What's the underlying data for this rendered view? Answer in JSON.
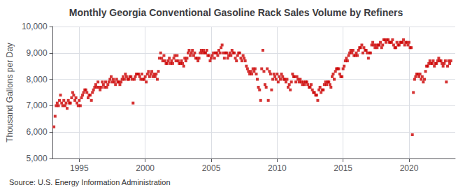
{
  "chart_data": {
    "type": "scatter",
    "title": "Monthly Georgia Conventional Gasoline Rack Sales Volume by Refiners",
    "ylabel": "Thousand Gallons per Day",
    "annotation": "Source: U.S. Energy Information Administration",
    "color": "#cc0000",
    "marker": "square",
    "grid": true,
    "xlim": [
      1993.0,
      2023.5
    ],
    "xticks": [
      1995,
      2000,
      2005,
      2010,
      2015,
      2020
    ],
    "ylim": [
      5000,
      10000
    ],
    "yticks": [
      {
        "value": 5000,
        "label": "5,000"
      },
      {
        "value": 6000,
        "label": "6,000"
      },
      {
        "value": 7000,
        "label": "7,000"
      },
      {
        "value": 8000,
        "label": "8,000"
      },
      {
        "value": 9000,
        "label": "9,000"
      },
      {
        "value": 10000,
        "label": "10,000"
      }
    ],
    "x": [
      1993.08,
      1993.17,
      1993.25,
      1993.33,
      1993.42,
      1993.5,
      1993.58,
      1993.67,
      1993.75,
      1993.83,
      1993.92,
      1994.0,
      1994.08,
      1994.17,
      1994.25,
      1994.33,
      1994.42,
      1994.5,
      1994.58,
      1994.67,
      1994.75,
      1994.83,
      1994.92,
      1995.0,
      1995.08,
      1995.17,
      1995.25,
      1995.33,
      1995.42,
      1995.5,
      1995.58,
      1995.67,
      1995.75,
      1995.83,
      1995.92,
      1996.0,
      1996.08,
      1996.17,
      1996.25,
      1996.33,
      1996.42,
      1996.5,
      1996.58,
      1996.67,
      1996.75,
      1996.83,
      1996.92,
      1997.0,
      1997.08,
      1997.17,
      1997.25,
      1997.33,
      1997.42,
      1997.5,
      1997.58,
      1997.67,
      1997.75,
      1997.83,
      1997.92,
      1998.0,
      1998.08,
      1998.17,
      1998.25,
      1998.33,
      1998.42,
      1998.5,
      1998.58,
      1998.67,
      1998.75,
      1998.83,
      1998.92,
      1999.0,
      1999.08,
      1999.17,
      1999.25,
      1999.33,
      1999.42,
      1999.5,
      1999.58,
      1999.67,
      1999.75,
      1999.83,
      1999.92,
      2000.0,
      2000.08,
      2000.17,
      2000.25,
      2000.33,
      2000.42,
      2000.5,
      2000.58,
      2000.67,
      2000.75,
      2000.83,
      2000.92,
      2001.0,
      2001.08,
      2001.17,
      2001.25,
      2001.33,
      2001.42,
      2001.5,
      2001.58,
      2001.67,
      2001.75,
      2001.83,
      2001.92,
      2002.0,
      2002.08,
      2002.17,
      2002.25,
      2002.33,
      2002.42,
      2002.5,
      2002.58,
      2002.67,
      2002.75,
      2002.83,
      2002.92,
      2003.0,
      2003.08,
      2003.17,
      2003.25,
      2003.33,
      2003.42,
      2003.5,
      2003.58,
      2003.67,
      2003.75,
      2003.83,
      2003.92,
      2004.0,
      2004.08,
      2004.17,
      2004.25,
      2004.33,
      2004.42,
      2004.5,
      2004.58,
      2004.67,
      2004.75,
      2004.83,
      2004.92,
      2005.0,
      2005.08,
      2005.17,
      2005.25,
      2005.33,
      2005.42,
      2005.5,
      2005.58,
      2005.67,
      2005.75,
      2005.83,
      2005.92,
      2006.0,
      2006.08,
      2006.17,
      2006.25,
      2006.33,
      2006.42,
      2006.5,
      2006.58,
      2006.67,
      2006.75,
      2006.83,
      2006.92,
      2007.0,
      2007.08,
      2007.17,
      2007.25,
      2007.33,
      2007.42,
      2007.5,
      2007.58,
      2007.67,
      2007.75,
      2007.83,
      2007.92,
      2008.0,
      2008.08,
      2008.17,
      2008.25,
      2008.33,
      2008.42,
      2008.5,
      2008.58,
      2008.67,
      2008.75,
      2008.83,
      2008.92,
      2009.0,
      2009.08,
      2009.17,
      2009.25,
      2009.33,
      2009.42,
      2009.5,
      2009.58,
      2009.67,
      2009.75,
      2009.83,
      2009.92,
      2010.0,
      2010.08,
      2010.17,
      2010.25,
      2010.33,
      2010.42,
      2010.5,
      2010.58,
      2010.67,
      2010.75,
      2010.83,
      2010.92,
      2011.0,
      2011.08,
      2011.17,
      2011.25,
      2011.33,
      2011.42,
      2011.5,
      2011.58,
      2011.67,
      2011.75,
      2011.83,
      2011.92,
      2012.0,
      2012.08,
      2012.17,
      2012.25,
      2012.33,
      2012.42,
      2012.5,
      2012.58,
      2012.67,
      2012.75,
      2012.83,
      2012.92,
      2013.0,
      2013.08,
      2013.17,
      2013.25,
      2013.33,
      2013.42,
      2013.5,
      2013.58,
      2013.67,
      2013.75,
      2013.83,
      2013.92,
      2014.0,
      2014.08,
      2014.17,
      2014.25,
      2014.33,
      2014.42,
      2014.5,
      2014.58,
      2014.67,
      2014.75,
      2014.83,
      2014.92,
      2015.0,
      2015.08,
      2015.17,
      2015.25,
      2015.33,
      2015.42,
      2015.5,
      2015.58,
      2015.67,
      2015.75,
      2015.83,
      2015.92,
      2016.0,
      2016.08,
      2016.17,
      2016.25,
      2016.33,
      2016.42,
      2016.5,
      2016.58,
      2016.67,
      2016.75,
      2016.83,
      2016.92,
      2017.0,
      2017.08,
      2017.17,
      2017.25,
      2017.33,
      2017.42,
      2017.5,
      2017.58,
      2017.67,
      2017.75,
      2017.83,
      2017.92,
      2018.0,
      2018.08,
      2018.17,
      2018.25,
      2018.33,
      2018.42,
      2018.5,
      2018.58,
      2018.67,
      2018.75,
      2018.83,
      2018.92,
      2019.0,
      2019.08,
      2019.17,
      2019.25,
      2019.33,
      2019.42,
      2019.5,
      2019.58,
      2019.67,
      2019.75,
      2019.83,
      2019.92,
      2020.0,
      2020.08,
      2020.17,
      2020.25,
      2020.33,
      2020.42,
      2020.5,
      2020.58,
      2020.67,
      2020.75,
      2020.83,
      2020.92,
      2021.0,
      2021.08,
      2021.17,
      2021.25,
      2021.33,
      2021.42,
      2021.5,
      2021.58,
      2021.67,
      2021.75,
      2021.83,
      2021.92,
      2022.0,
      2022.08,
      2022.17,
      2022.25,
      2022.33,
      2022.42,
      2022.5,
      2022.58,
      2022.67,
      2022.75,
      2022.83,
      2022.92,
      2023.0,
      2023.08,
      2023.17
    ],
    "values": [
      6200,
      6600,
      7000,
      7100,
      7000,
      7200,
      7400,
      7100,
      7000,
      7200,
      7000,
      7100,
      6900,
      7200,
      7100,
      7100,
      7300,
      7500,
      7400,
      7200,
      7300,
      7100,
      7000,
      7200,
      7000,
      7300,
      7400,
      7500,
      7600,
      7600,
      7500,
      7300,
      7400,
      7400,
      7200,
      7500,
      7600,
      7700,
      7800,
      7700,
      7900,
      7700,
      7600,
      7700,
      7900,
      7800,
      7700,
      7900,
      7700,
      7800,
      7900,
      8000,
      8100,
      7900,
      8000,
      7900,
      7800,
      8000,
      7900,
      7900,
      7800,
      7900,
      8000,
      8100,
      8000,
      8200,
      8100,
      8000,
      8000,
      8100,
      8100,
      8000,
      7100,
      8000,
      8100,
      8200,
      8200,
      8200,
      8100,
      8000,
      8200,
      8000,
      8000,
      8100,
      7900,
      8200,
      8300,
      8100,
      8200,
      8300,
      8100,
      8200,
      8100,
      8200,
      8000,
      8300,
      8800,
      9000,
      8800,
      8700,
      8900,
      8700,
      8600,
      8600,
      8700,
      8800,
      8600,
      8700,
      8600,
      8800,
      8900,
      8700,
      8900,
      8700,
      8600,
      8600,
      8700,
      8600,
      8500,
      8800,
      8700,
      8800,
      9000,
      9100,
      8900,
      9000,
      9100,
      8900,
      9000,
      8800,
      8800,
      8700,
      8800,
      9000,
      9100,
      9000,
      9100,
      9000,
      9000,
      9100,
      8900,
      8900,
      8700,
      8800,
      8900,
      9000,
      8800,
      9000,
      9000,
      8900,
      9100,
      9000,
      9200,
      9300,
      9000,
      8800,
      9000,
      9000,
      8800,
      8900,
      9000,
      8900,
      9100,
      9000,
      9000,
      8800,
      8700,
      8900,
      9000,
      9000,
      8800,
      8700,
      8900,
      8800,
      8700,
      8500,
      8400,
      8300,
      8200,
      8300,
      8200,
      8400,
      8300,
      8400,
      8200,
      8000,
      7700,
      7600,
      7200,
      8400,
      9100,
      8300,
      7800,
      7700,
      8400,
      7200,
      8300,
      8200,
      7600,
      8000,
      8200,
      8100,
      8000,
      8200,
      7900,
      8100,
      8000,
      8200,
      8100,
      8000,
      8000,
      7900,
      8000,
      7700,
      7800,
      7600,
      7900,
      8200,
      8100,
      8100,
      7900,
      8100,
      8000,
      7900,
      8000,
      7900,
      7800,
      7900,
      7800,
      7900,
      7900,
      7800,
      7700,
      7700,
      7800,
      7600,
      7500,
      7500,
      7400,
      7400,
      7200,
      7600,
      7700,
      7500,
      7600,
      7600,
      7800,
      7900,
      7800,
      7900,
      7900,
      7800,
      7700,
      8100,
      8200,
      8000,
      8300,
      8400,
      8400,
      8400,
      8200,
      8100,
      8100,
      8400,
      8500,
      8700,
      8800,
      8700,
      8900,
      9000,
      9100,
      9000,
      9100,
      8900,
      8900,
      9000,
      8900,
      9100,
      9200,
      9200,
      9300,
      9000,
      9200,
      9100,
      9100,
      9000,
      8800,
      9000,
      9000,
      9300,
      9400,
      9300,
      9200,
      9300,
      9200,
      9300,
      9300,
      9400,
      9200,
      9300,
      9500,
      9500,
      9400,
      9500,
      9500,
      9400,
      9400,
      9400,
      9500,
      9300,
      9200,
      9200,
      9400,
      9300,
      9300,
      9400,
      9400,
      9400,
      9500,
      9300,
      9400,
      9400,
      9300,
      9400,
      9200,
      9200,
      5900,
      7500,
      8000,
      8100,
      8200,
      8200,
      8100,
      8200,
      8000,
      8100,
      7900,
      8000,
      8300,
      8500,
      8500,
      8600,
      8700,
      8600,
      8600,
      8700,
      8500,
      8600,
      8600,
      8700,
      8800,
      8700,
      8700,
      8600,
      8500,
      8600,
      8700,
      7900,
      8500,
      8700,
      8600,
      8700
    ]
  }
}
